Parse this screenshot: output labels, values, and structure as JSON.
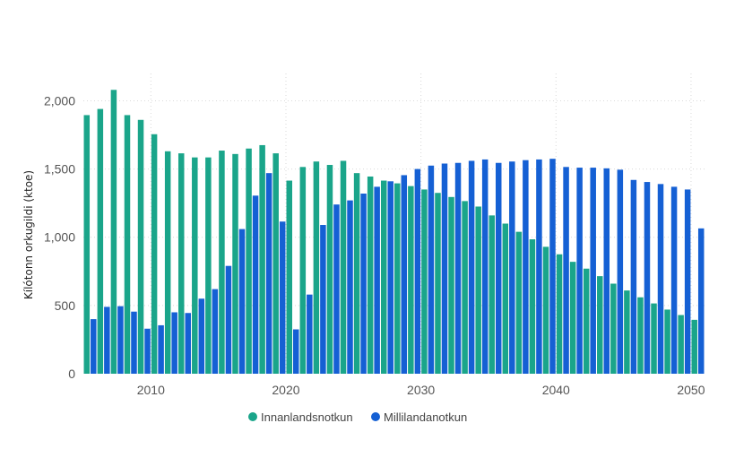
{
  "chart_data": {
    "type": "bar",
    "title": "",
    "xlabel": "",
    "ylabel": "Kílótonn orkugildi (ktoe)",
    "ylim": [
      0,
      2200
    ],
    "y_ticks": [
      0,
      500,
      1000,
      1500,
      2000
    ],
    "y_tick_labels": [
      "0",
      "500",
      "1,000",
      "1,500",
      "2,000"
    ],
    "x_ticks": [
      2010,
      2020,
      2030,
      2040,
      2050
    ],
    "x_tick_labels": [
      "2010",
      "2020",
      "2030",
      "2040",
      "2050"
    ],
    "categories": [
      2005,
      2006,
      2007,
      2008,
      2009,
      2010,
      2011,
      2012,
      2013,
      2014,
      2015,
      2016,
      2017,
      2018,
      2019,
      2020,
      2021,
      2022,
      2023,
      2024,
      2025,
      2026,
      2027,
      2028,
      2029,
      2030,
      2031,
      2032,
      2033,
      2034,
      2035,
      2036,
      2037,
      2038,
      2039,
      2040,
      2041,
      2042,
      2043,
      2044,
      2045,
      2046,
      2047,
      2048,
      2049,
      2050
    ],
    "series": [
      {
        "name": "Innanlandsnotkun",
        "color": "#1aa58a",
        "values": [
          1895,
          1940,
          2080,
          1895,
          1860,
          1755,
          1630,
          1615,
          1585,
          1585,
          1635,
          1610,
          1650,
          1675,
          1615,
          1415,
          1515,
          1555,
          1530,
          1560,
          1470,
          1445,
          1415,
          1395,
          1375,
          1350,
          1325,
          1295,
          1265,
          1225,
          1160,
          1100,
          1040,
          985,
          930,
          875,
          820,
          770,
          715,
          660,
          610,
          560,
          515,
          470,
          430,
          395
        ]
      },
      {
        "name": "Millilandanotkun",
        "color": "#1560d4",
        "values": [
          400,
          490,
          495,
          455,
          330,
          355,
          450,
          445,
          550,
          620,
          790,
          1060,
          1305,
          1470,
          1115,
          325,
          580,
          1090,
          1240,
          1270,
          1320,
          1370,
          1410,
          1455,
          1500,
          1525,
          1540,
          1545,
          1560,
          1570,
          1545,
          1555,
          1565,
          1570,
          1575,
          1515,
          1510,
          1510,
          1505,
          1495,
          1420,
          1405,
          1390,
          1370,
          1350,
          1065
        ]
      }
    ],
    "legend": {
      "position": "bottom-center",
      "entries": [
        "Innanlandsnotkun",
        "Millilandanotkun"
      ]
    },
    "grid": true
  }
}
